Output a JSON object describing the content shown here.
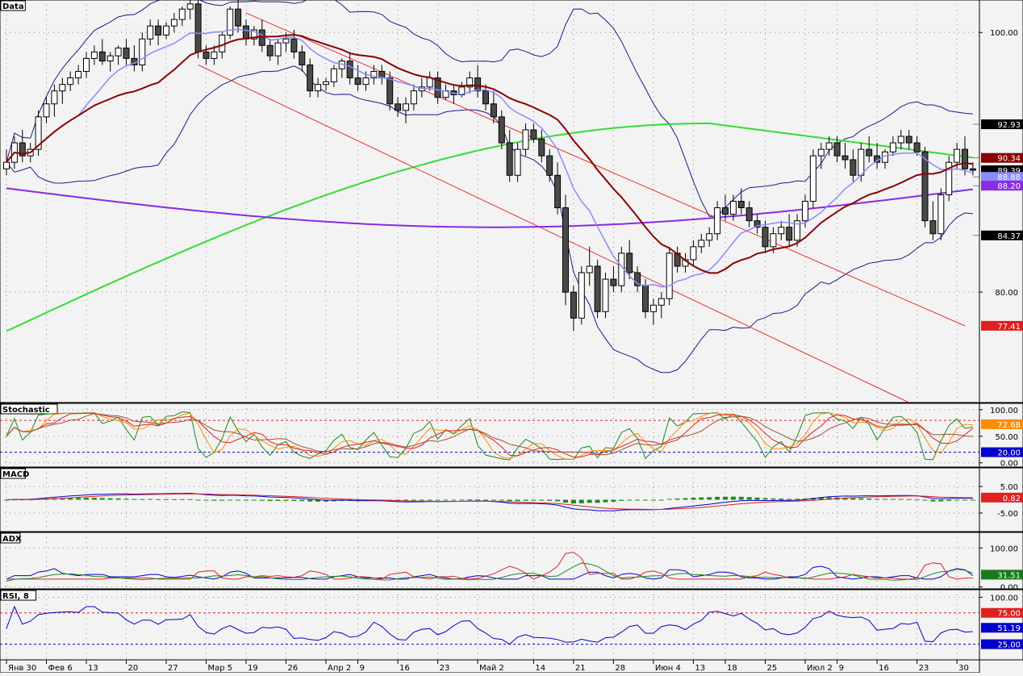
{
  "colors": {
    "background": "#f3f3f3",
    "bull": "#ffffff",
    "bear": "#4a4a4a",
    "bollinger": "#1a1a8c",
    "sma_fast": "#8a8aff",
    "sma_mid": "#8b0000",
    "sma_green": "#33dd33",
    "sma_purple": "#8a2be2",
    "channel": "#e83030"
  },
  "panes": {
    "data": {
      "label": "Data"
    },
    "stochastic": {
      "label": "Stochastic"
    },
    "macd": {
      "label": "MACD"
    },
    "adx": {
      "label": "ADX"
    },
    "rsi": {
      "label": "RSI, 8"
    }
  },
  "x_axis": {
    "labels": [
      {
        "i": 0,
        "text": "Янв 30"
      },
      {
        "i": 5,
        "text": "Фев 6"
      },
      {
        "i": 10,
        "text": "13"
      },
      {
        "i": 15,
        "text": "20"
      },
      {
        "i": 20,
        "text": "27"
      },
      {
        "i": 25,
        "text": "Мар 5"
      },
      {
        "i": 30,
        "text": "19"
      },
      {
        "i": 35,
        "text": "26"
      },
      {
        "i": 40,
        "text": "Апр 2"
      },
      {
        "i": 44,
        "text": "9"
      },
      {
        "i": 49,
        "text": "16"
      },
      {
        "i": 54,
        "text": "23"
      },
      {
        "i": 59,
        "text": "Май 2"
      },
      {
        "i": 66,
        "text": "14"
      },
      {
        "i": 71,
        "text": "21"
      },
      {
        "i": 76,
        "text": "28"
      },
      {
        "i": 81,
        "text": "Июн 4"
      },
      {
        "i": 86,
        "text": "13"
      },
      {
        "i": 90,
        "text": "18"
      },
      {
        "i": 95,
        "text": "25"
      },
      {
        "i": 100,
        "text": "Июл 2"
      },
      {
        "i": 104,
        "text": "9"
      },
      {
        "i": 109,
        "text": "16"
      },
      {
        "i": 114,
        "text": "23"
      },
      {
        "i": 119,
        "text": "30"
      }
    ]
  },
  "chart_data": [
    {
      "type": "candlestick",
      "pane": "Data",
      "ylim": [
        71.5,
        102.5
      ],
      "y_ticks": [
        "100.00",
        "80.00"
      ],
      "price_tags": [
        {
          "value": "92.93",
          "bg": "#000000",
          "fg": "#ffffff"
        },
        {
          "value": "90.34",
          "bg": "#8b0000",
          "fg": "#ffffff"
        },
        {
          "value": "89.39",
          "bg": "#000000",
          "fg": "#ffffff"
        },
        {
          "value": "88.88",
          "bg": "#8a8aff",
          "fg": "#ffffff"
        },
        {
          "value": "88.20",
          "bg": "#8a2be2",
          "fg": "#ffffff"
        },
        {
          "value": "84.37",
          "bg": "#000000",
          "fg": "#ffffff"
        },
        {
          "value": "77.41",
          "bg": "#e02020",
          "fg": "#ffffff"
        }
      ],
      "candles": [
        [
          89.5,
          91,
          89,
          90
        ],
        [
          90,
          92,
          89.5,
          91.5
        ],
        [
          91.5,
          92.5,
          90,
          90.5
        ],
        [
          90.5,
          91.5,
          90,
          91
        ],
        [
          91,
          94,
          90.5,
          93.5
        ],
        [
          93.5,
          95,
          93,
          94.5
        ],
        [
          94.5,
          96,
          93.5,
          95.5
        ],
        [
          95.5,
          96.5,
          94.5,
          96
        ],
        [
          96,
          97,
          95.5,
          96.5
        ],
        [
          96.5,
          97.5,
          96,
          97
        ],
        [
          97,
          98.5,
          96.5,
          98
        ],
        [
          98,
          99,
          97.5,
          98.5
        ],
        [
          98.5,
          99.5,
          97.5,
          97.8
        ],
        [
          97.8,
          98.5,
          97,
          98.2
        ],
        [
          98.2,
          99,
          97.5,
          98.8
        ],
        [
          98.8,
          99.5,
          97.5,
          98
        ],
        [
          98,
          99,
          97,
          97.5
        ],
        [
          97.5,
          100,
          97,
          99.5
        ],
        [
          99.5,
          101,
          99,
          100.5
        ],
        [
          100.5,
          101,
          99,
          99.8
        ],
        [
          99.8,
          100.8,
          99.5,
          100.5
        ],
        [
          100.5,
          101.5,
          100,
          101
        ],
        [
          101,
          102,
          100.5,
          101.8
        ],
        [
          101.8,
          102.5,
          101,
          102.2
        ],
        [
          102.2,
          102.5,
          98,
          98.5
        ],
        [
          98.5,
          99,
          97.5,
          98
        ],
        [
          98,
          99,
          97.5,
          98.5
        ],
        [
          98.5,
          100,
          98,
          99.8
        ],
        [
          99.8,
          102,
          99.5,
          101.8
        ],
        [
          101.8,
          102.5,
          100,
          100.5
        ],
        [
          100.5,
          101,
          99,
          99.5
        ],
        [
          99.5,
          100.5,
          99,
          100.2
        ],
        [
          100.2,
          101,
          98.5,
          99
        ],
        [
          99,
          99.5,
          97.8,
          98.2
        ],
        [
          98.2,
          99.5,
          97.5,
          99.2
        ],
        [
          99.2,
          100,
          98.5,
          99.5
        ],
        [
          99.5,
          100.2,
          98,
          98.5
        ],
        [
          98.5,
          99,
          97,
          97.5
        ],
        [
          97.5,
          98,
          95,
          95.5
        ],
        [
          95.5,
          96.5,
          95,
          96
        ],
        [
          96,
          96.5,
          95.5,
          96.2
        ],
        [
          96.2,
          97.5,
          95.8,
          97.2
        ],
        [
          97.2,
          98,
          96.5,
          97.8
        ],
        [
          97.8,
          98.5,
          96,
          96.5
        ],
        [
          96.5,
          97.5,
          95.5,
          96
        ],
        [
          96,
          97,
          95.5,
          96.5
        ],
        [
          96.5,
          97.5,
          96,
          97
        ],
        [
          97,
          97.5,
          96,
          96.5
        ],
        [
          96.5,
          97,
          94,
          94.5
        ],
        [
          94.5,
          95,
          93.5,
          94
        ],
        [
          94,
          95,
          93,
          94.5
        ],
        [
          94.5,
          96,
          94,
          95.5
        ],
        [
          95.5,
          96.5,
          95,
          95.8
        ],
        [
          95.8,
          97,
          95.5,
          96.5
        ],
        [
          96.5,
          97,
          94.5,
          95
        ],
        [
          95,
          96,
          94.8,
          95.5
        ],
        [
          95.5,
          96,
          94.5,
          95.2
        ],
        [
          95.2,
          96.2,
          95,
          95.8
        ],
        [
          95.8,
          97,
          95.3,
          96.5
        ],
        [
          96.5,
          97.5,
          95,
          95.5
        ],
        [
          95.5,
          96,
          94,
          94.5
        ],
        [
          94.5,
          95.5,
          93,
          93.5
        ],
        [
          93.5,
          94,
          91,
          91.5
        ],
        [
          91.5,
          92.5,
          88.5,
          89
        ],
        [
          89,
          91.5,
          88.5,
          91
        ],
        [
          91,
          93,
          90.5,
          92.5
        ],
        [
          92.5,
          93,
          91.5,
          91.8
        ],
        [
          91.8,
          92.5,
          90,
          90.5
        ],
        [
          90.5,
          91,
          88.5,
          89
        ],
        [
          89,
          90,
          86,
          86.5
        ],
        [
          86.5,
          87.5,
          79,
          80
        ],
        [
          80,
          80.5,
          77,
          78
        ],
        [
          78,
          82,
          77.5,
          81.5
        ],
        [
          81.5,
          83.5,
          80.5,
          82
        ],
        [
          82,
          82.5,
          78,
          78.5
        ],
        [
          78.5,
          81.5,
          78,
          81
        ],
        [
          81,
          82,
          80,
          80.5
        ],
        [
          80.5,
          83.5,
          80,
          83
        ],
        [
          83,
          84,
          81,
          81.5
        ],
        [
          81.5,
          82,
          80,
          80.5
        ],
        [
          80.5,
          81,
          78,
          78.5
        ],
        [
          78.5,
          79.5,
          77.5,
          79
        ],
        [
          79,
          80,
          78,
          79.5
        ],
        [
          79.5,
          83.5,
          79,
          83
        ],
        [
          83,
          83.5,
          81.5,
          82
        ],
        [
          82,
          83,
          81.5,
          82.5
        ],
        [
          82.5,
          84,
          82,
          83.5
        ],
        [
          83.5,
          84.5,
          83,
          84
        ],
        [
          84,
          85,
          83.5,
          84.5
        ],
        [
          84.5,
          87,
          84,
          86.5
        ],
        [
          86.5,
          87.5,
          85.5,
          86
        ],
        [
          86,
          87.5,
          85.5,
          87
        ],
        [
          87,
          88,
          86,
          86.5
        ],
        [
          86.5,
          87,
          85,
          85.5
        ],
        [
          85.5,
          86,
          84.5,
          85
        ],
        [
          85,
          85.5,
          83,
          83.5
        ],
        [
          83.5,
          85,
          83,
          84.5
        ],
        [
          84.5,
          85.5,
          84,
          85
        ],
        [
          85,
          86,
          83.5,
          84
        ],
        [
          84,
          86,
          83.5,
          85.5
        ],
        [
          85.5,
          87.5,
          85,
          87
        ],
        [
          87,
          91,
          86.5,
          90.5
        ],
        [
          90.5,
          91.5,
          89.5,
          91
        ],
        [
          91,
          92,
          90.5,
          91.5
        ],
        [
          91.5,
          92,
          90,
          90.5
        ],
        [
          90.5,
          91.5,
          89.5,
          90.2
        ],
        [
          90.2,
          91,
          88.5,
          89
        ],
        [
          89,
          91.5,
          88.5,
          91
        ],
        [
          91,
          92,
          90,
          90.5
        ],
        [
          90.5,
          91.5,
          89.5,
          90
        ],
        [
          90,
          91,
          89.5,
          90.8
        ],
        [
          90.8,
          92,
          90.5,
          91.5
        ],
        [
          91.5,
          92.5,
          91,
          92
        ],
        [
          92,
          92.5,
          91,
          91.5
        ],
        [
          91.5,
          92,
          90.5,
          90.8
        ],
        [
          90.8,
          91.2,
          85,
          85.5
        ],
        [
          85.5,
          87,
          84,
          84.5
        ],
        [
          84.5,
          88,
          84,
          87.5
        ],
        [
          87.5,
          90.5,
          87,
          90
        ],
        [
          90,
          91.5,
          89.5,
          91
        ],
        [
          91,
          92,
          89,
          89.5
        ],
        [
          89.5,
          90,
          89,
          89.39
        ]
      ],
      "indicators": {
        "channel_upper": {
          "start": [
            30,
            101.5
          ],
          "end": [
            120,
            77.41
          ]
        },
        "channel_lower": {
          "start": [
            24,
            97.5
          ],
          "end": [
            113,
            71.5
          ]
        },
        "price_lines": [
          "92.93",
          "90.34",
          "88.88",
          "88.20",
          "84.37"
        ]
      }
    },
    {
      "type": "line",
      "pane": "Stochastic",
      "ylim": [
        -8,
        112
      ],
      "y_ticks": [
        "100.00",
        "50.00",
        "0.00"
      ],
      "levels": [
        80,
        20
      ],
      "price_tags": [
        {
          "value": "72.68",
          "bg": "#ff8c00",
          "fg": "#ffffff"
        },
        {
          "value": "20.00",
          "bg": "#0000cc",
          "fg": "#ffffff"
        }
      ]
    },
    {
      "type": "bar",
      "pane": "MACD",
      "ylim": [
        -12,
        12
      ],
      "y_ticks": [
        "5.00",
        "-5.00"
      ],
      "price_tags": [
        {
          "value": "0.82",
          "bg": "#e02020",
          "fg": "#ffffff"
        }
      ]
    },
    {
      "type": "line",
      "pane": "ADX",
      "ylim": [
        -5,
        140
      ],
      "y_ticks": [
        "100.00",
        "0.00"
      ],
      "price_tags": [
        {
          "value": "31.51",
          "bg": "#1a7a1a",
          "fg": "#ffffff"
        }
      ]
    },
    {
      "type": "line",
      "pane": "RSI",
      "ylim": [
        0,
        112
      ],
      "y_ticks": [
        "100.00"
      ],
      "levels": [
        75,
        25
      ],
      "price_tags": [
        {
          "value": "75.00",
          "bg": "#e02020",
          "fg": "#ffffff"
        },
        {
          "value": "51.19",
          "bg": "#0000cc",
          "fg": "#ffffff"
        },
        {
          "value": "25.00",
          "bg": "#0000cc",
          "fg": "#ffffff"
        }
      ]
    }
  ]
}
